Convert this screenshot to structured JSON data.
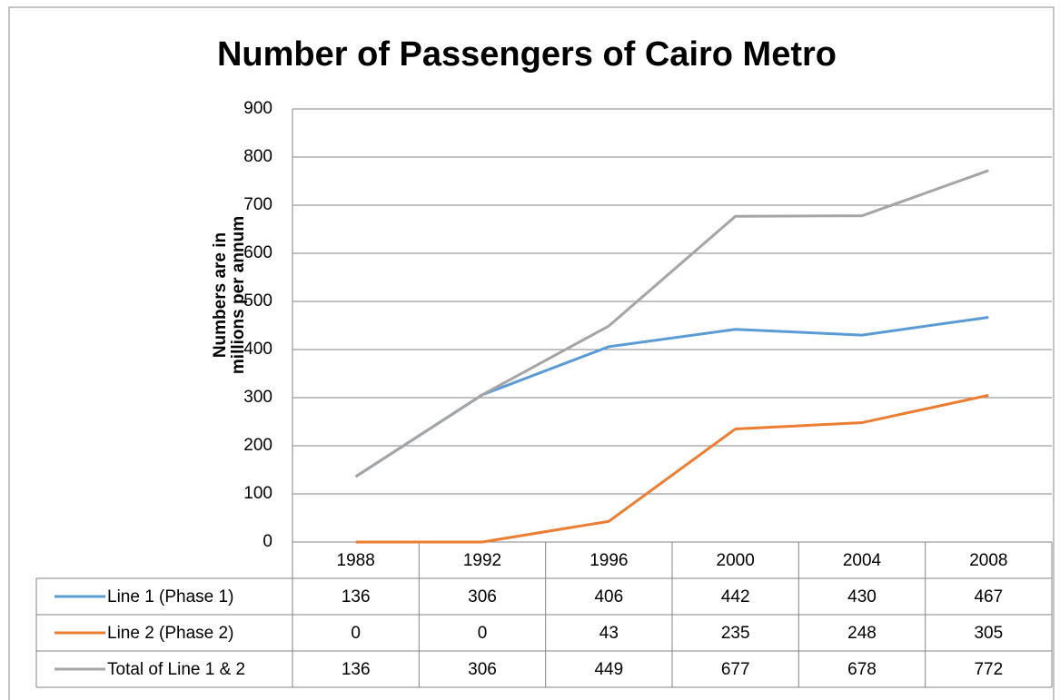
{
  "chart_data": {
    "type": "line",
    "title": "Number of Passengers of Cairo Metro",
    "y_label": "Numbers are in millions per annum",
    "categories": [
      "1988",
      "1992",
      "1996",
      "2000",
      "2004",
      "2008"
    ],
    "series": [
      {
        "name": "Line 1 (Phase 1)",
        "color": "#5b9bd5",
        "values": [
          136,
          306,
          406,
          442,
          430,
          467
        ]
      },
      {
        "name": "Line 2 (Phase 2)",
        "color": "#ed7d31",
        "values": [
          0,
          0,
          43,
          235,
          248,
          305
        ]
      },
      {
        "name": "Total of Line 1 & 2",
        "color": "#a5a5a5",
        "values": [
          136,
          306,
          449,
          677,
          678,
          772
        ]
      }
    ],
    "ylim": [
      0,
      900
    ],
    "yticks": [
      0,
      100,
      200,
      300,
      400,
      500,
      600,
      700,
      800,
      900
    ],
    "grid": true,
    "data_table": true
  }
}
